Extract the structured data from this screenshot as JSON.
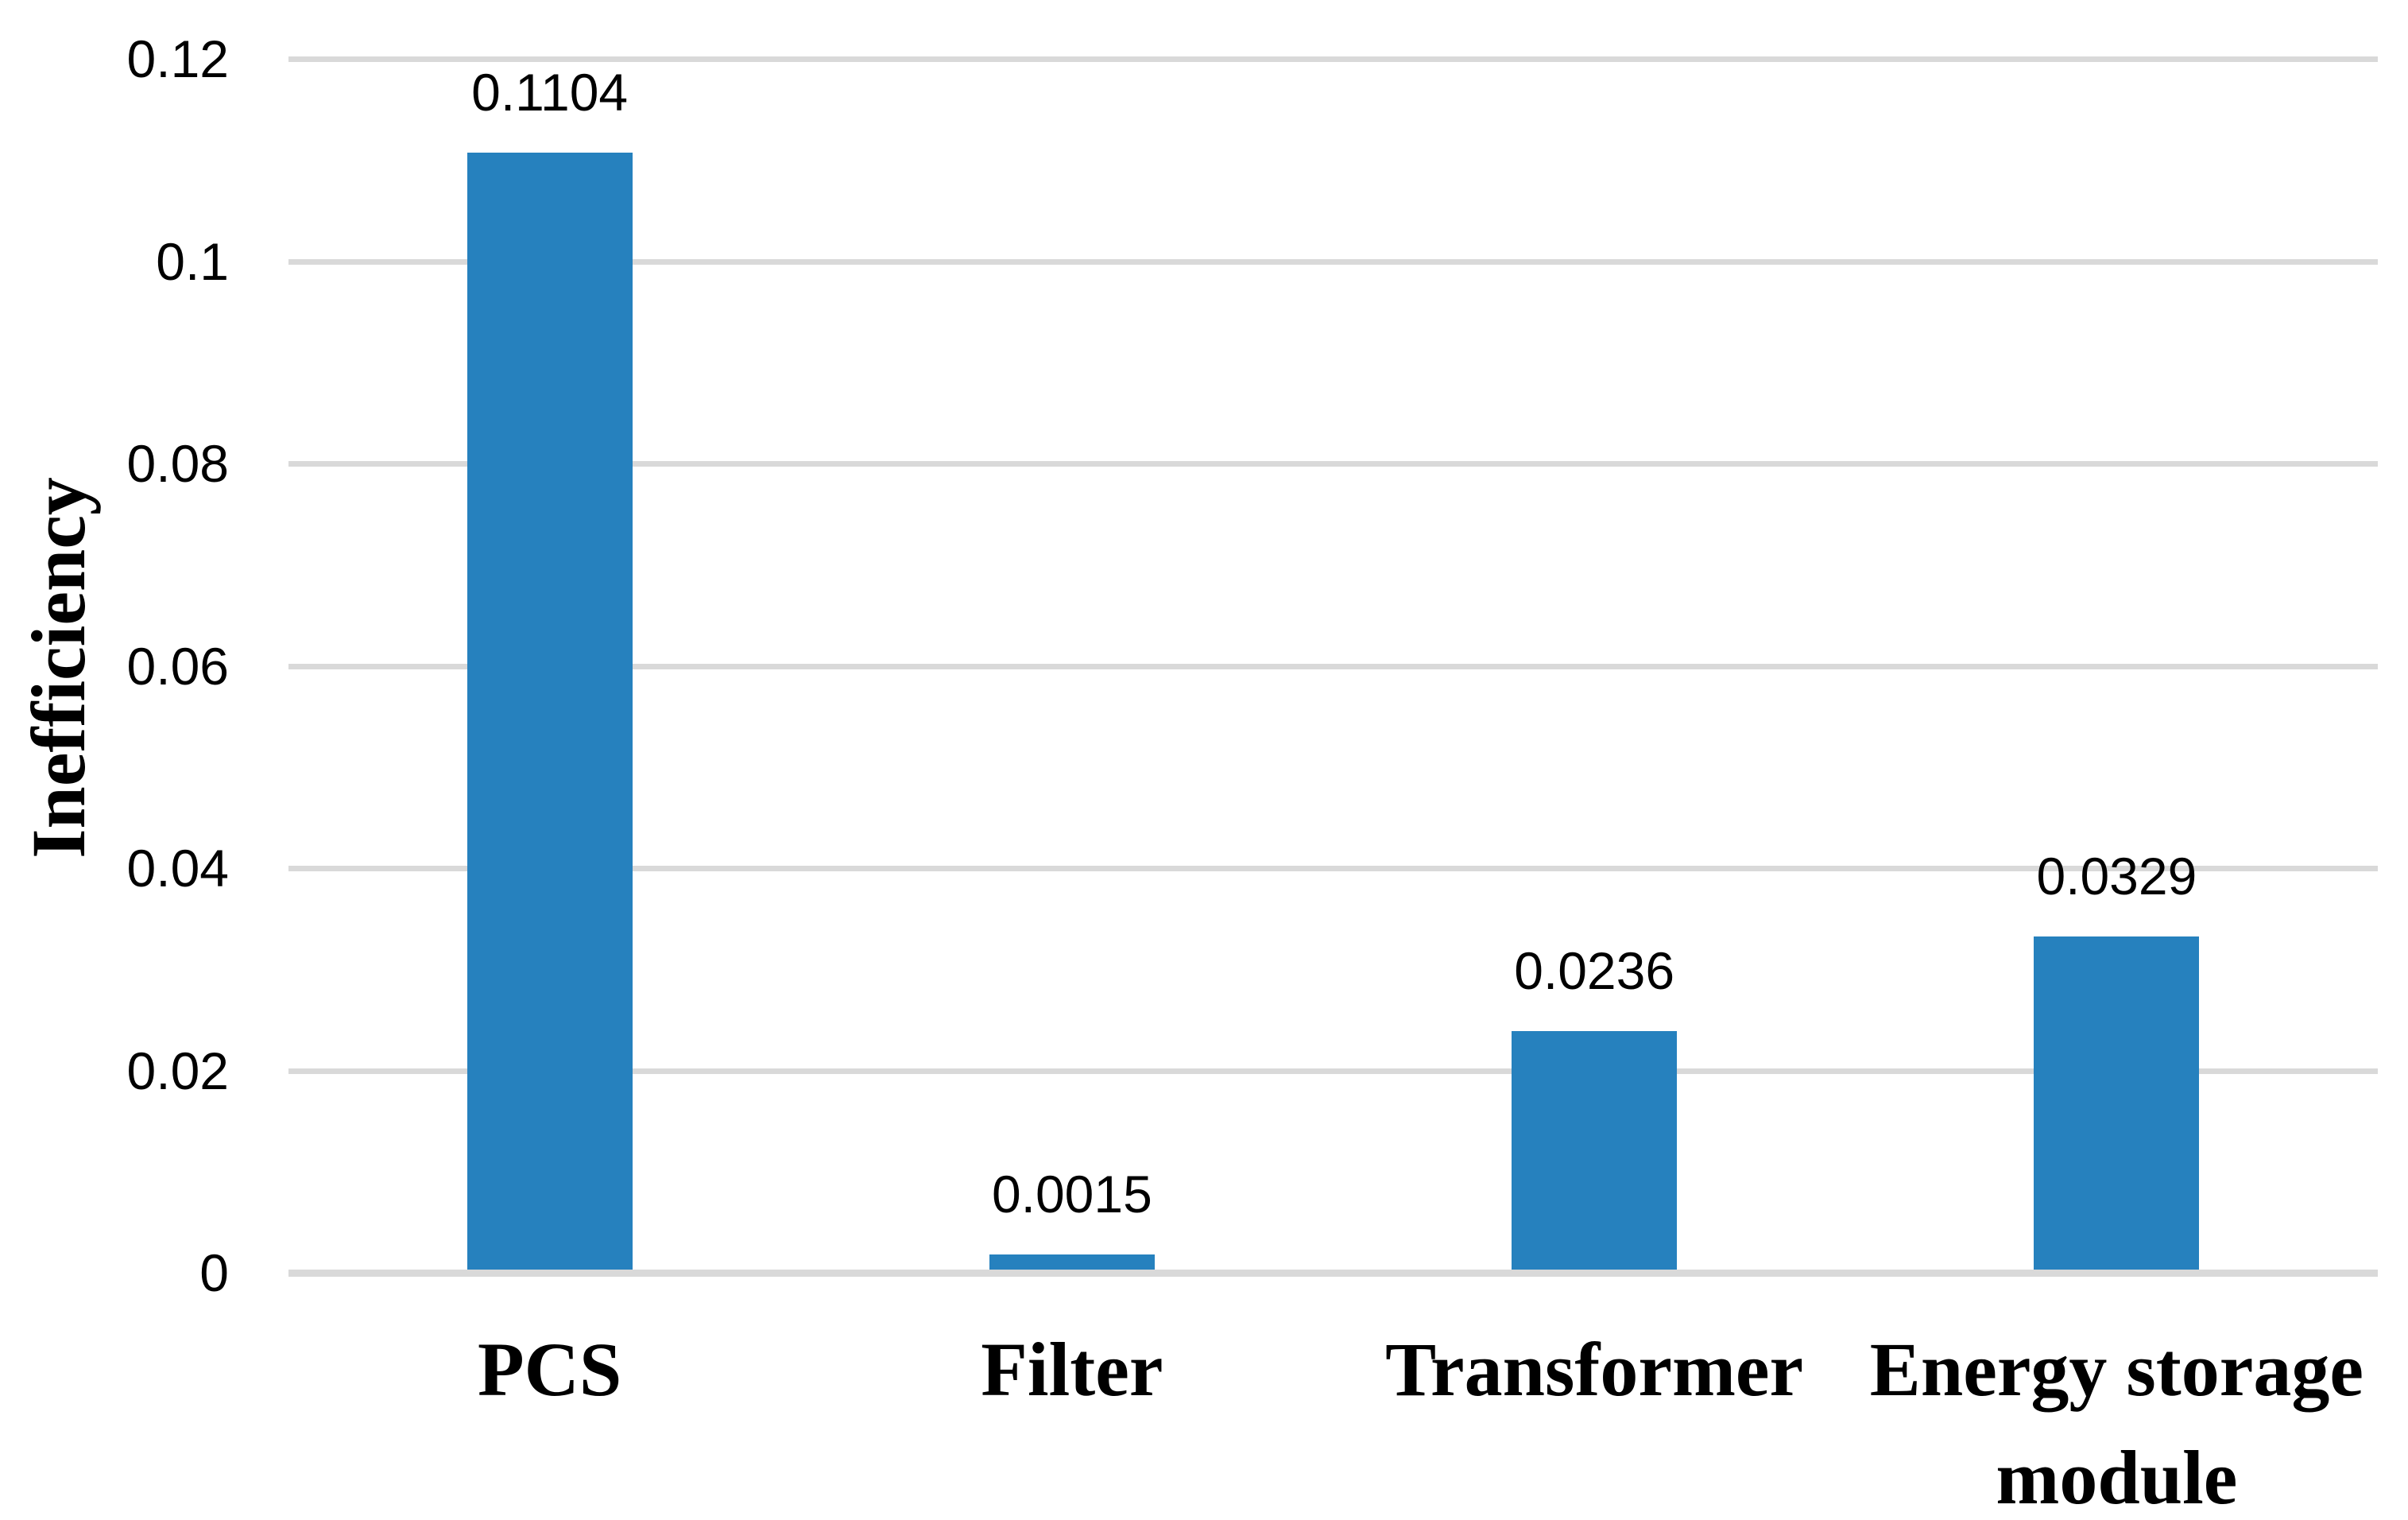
{
  "chart_data": {
    "type": "bar",
    "title": "",
    "xlabel": "",
    "ylabel": "Inefficiency",
    "categories": [
      "PCS",
      "Filter",
      "Transformer",
      "Energy storage module"
    ],
    "values": [
      0.1104,
      0.0015,
      0.0236,
      0.0329
    ],
    "data_labels": [
      "0.1104",
      "0.0015",
      "0.0236",
      "0.0329"
    ],
    "ylim": [
      0,
      0.12
    ],
    "yticks": [
      0,
      0.02,
      0.04,
      0.06,
      0.08,
      0.1,
      0.12
    ],
    "ytick_labels": [
      "0",
      "0.02",
      "0.04",
      "0.06",
      "0.08",
      "0.1",
      "0.12"
    ],
    "grid": true,
    "legend": false,
    "colors": {
      "bar": "#2681BE",
      "gridline": "#D9D9D9",
      "text": "#000000",
      "background": "#FFFFFF"
    }
  }
}
